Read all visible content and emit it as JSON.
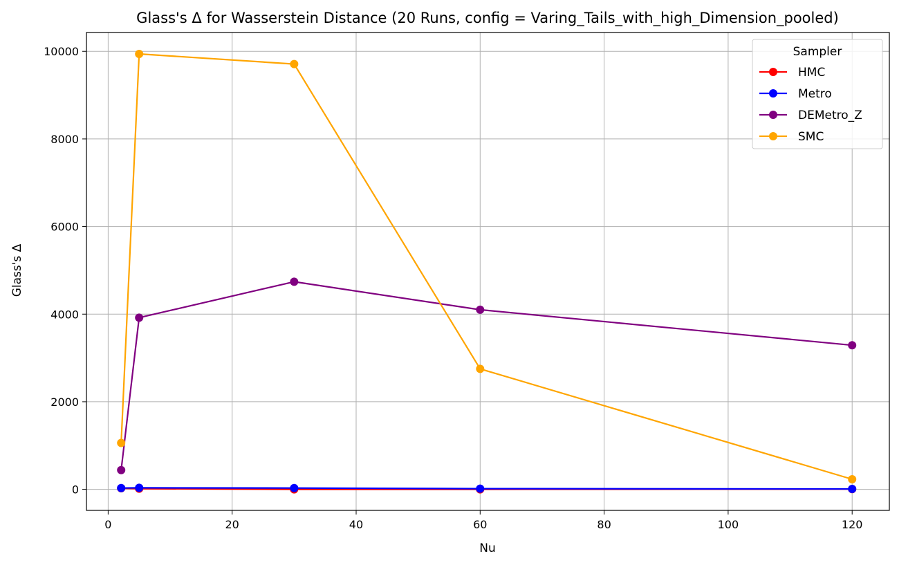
{
  "chart_data": {
    "type": "line",
    "title": "Glass's Δ for Wasserstein Distance (20 Runs, config = Varing_Tails_with_high_Dimension_pooled)",
    "xlabel": "Nu",
    "ylabel": "Glass's Δ",
    "xlim": [
      -3.5,
      126
    ],
    "ylim": [
      -480,
      10430
    ],
    "xticks": [
      0,
      20,
      40,
      60,
      80,
      100,
      120
    ],
    "yticks": [
      0,
      2000,
      4000,
      6000,
      8000,
      10000
    ],
    "grid": true,
    "legend": {
      "title": "Sampler",
      "placement": "top-right"
    },
    "x": [
      2.1,
      5,
      30,
      60,
      120
    ],
    "series": [
      {
        "name": "HMC",
        "color": "#ff0000",
        "values": [
          25,
          15,
          0,
          0,
          5
        ]
      },
      {
        "name": "Metro",
        "color": "#0000ff",
        "values": [
          30,
          35,
          30,
          15,
          10
        ]
      },
      {
        "name": "DEMetro_Z",
        "color": "#800080",
        "values": [
          440,
          3920,
          4740,
          4100,
          3290
        ]
      },
      {
        "name": "SMC",
        "color": "#ffa500",
        "values": [
          1060,
          9940,
          9710,
          2750,
          230
        ]
      }
    ]
  }
}
